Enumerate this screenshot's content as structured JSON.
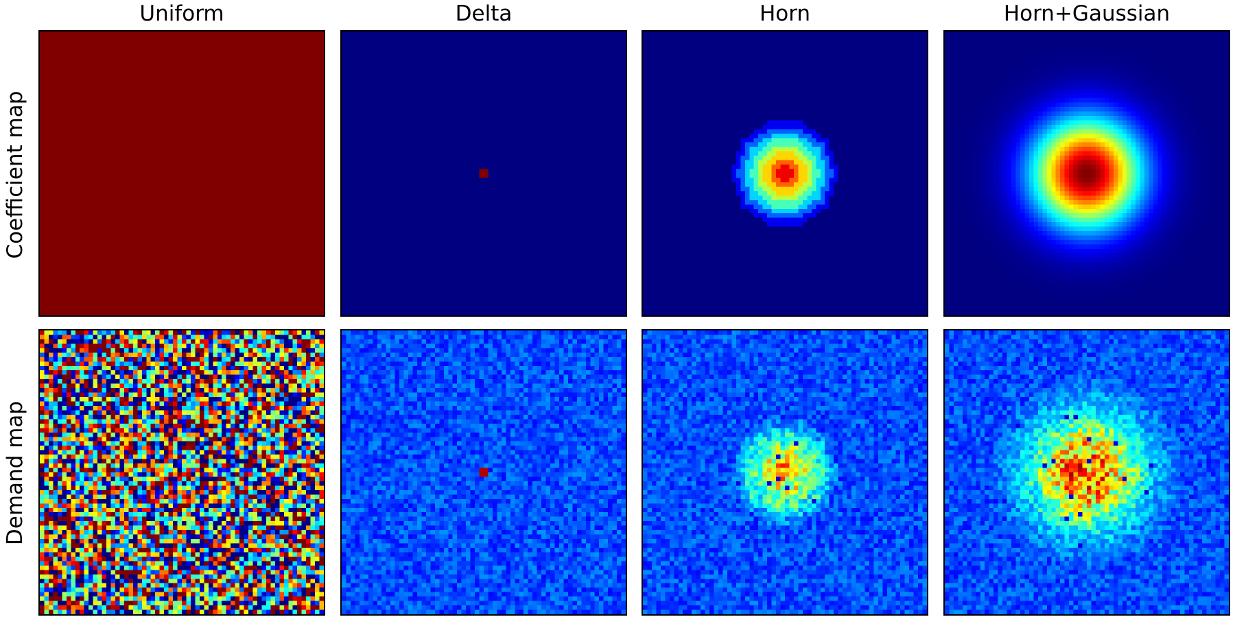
{
  "chart_data": {
    "type": "heatmap",
    "colormap": "jet",
    "columns": [
      "Uniform",
      "Delta",
      "Horn",
      "Horn+Gaussian"
    ],
    "rows": [
      "Coefficient map",
      "Demand map"
    ],
    "grid": false,
    "panels": [
      {
        "row": "Coefficient map",
        "column": "Uniform",
        "pattern": "uniform",
        "value": 1.0
      },
      {
        "row": "Coefficient map",
        "column": "Delta",
        "pattern": "delta",
        "peak": 1.0,
        "background": 0.0
      },
      {
        "row": "Coefficient map",
        "column": "Horn",
        "pattern": "horn",
        "peak": 1.0,
        "background": 0.0
      },
      {
        "row": "Coefficient map",
        "column": "Horn+Gaussian",
        "pattern": "horn+gaussian",
        "peak": 1.0,
        "background": 0.0
      },
      {
        "row": "Demand map",
        "column": "Uniform",
        "pattern": "noise",
        "mean": 0.5,
        "spread": "high"
      },
      {
        "row": "Demand map",
        "column": "Delta",
        "pattern": "noise",
        "mean": 0.2,
        "spread": "low",
        "hotspot": "center"
      },
      {
        "row": "Demand map",
        "column": "Horn",
        "pattern": "noise",
        "mean": 0.2,
        "spread": "low",
        "hotspot": "horn"
      },
      {
        "row": "Demand map",
        "column": "Horn+Gaussian",
        "pattern": "noise",
        "mean": 0.2,
        "spread": "low",
        "hotspot": "horn+gaussian"
      }
    ]
  }
}
